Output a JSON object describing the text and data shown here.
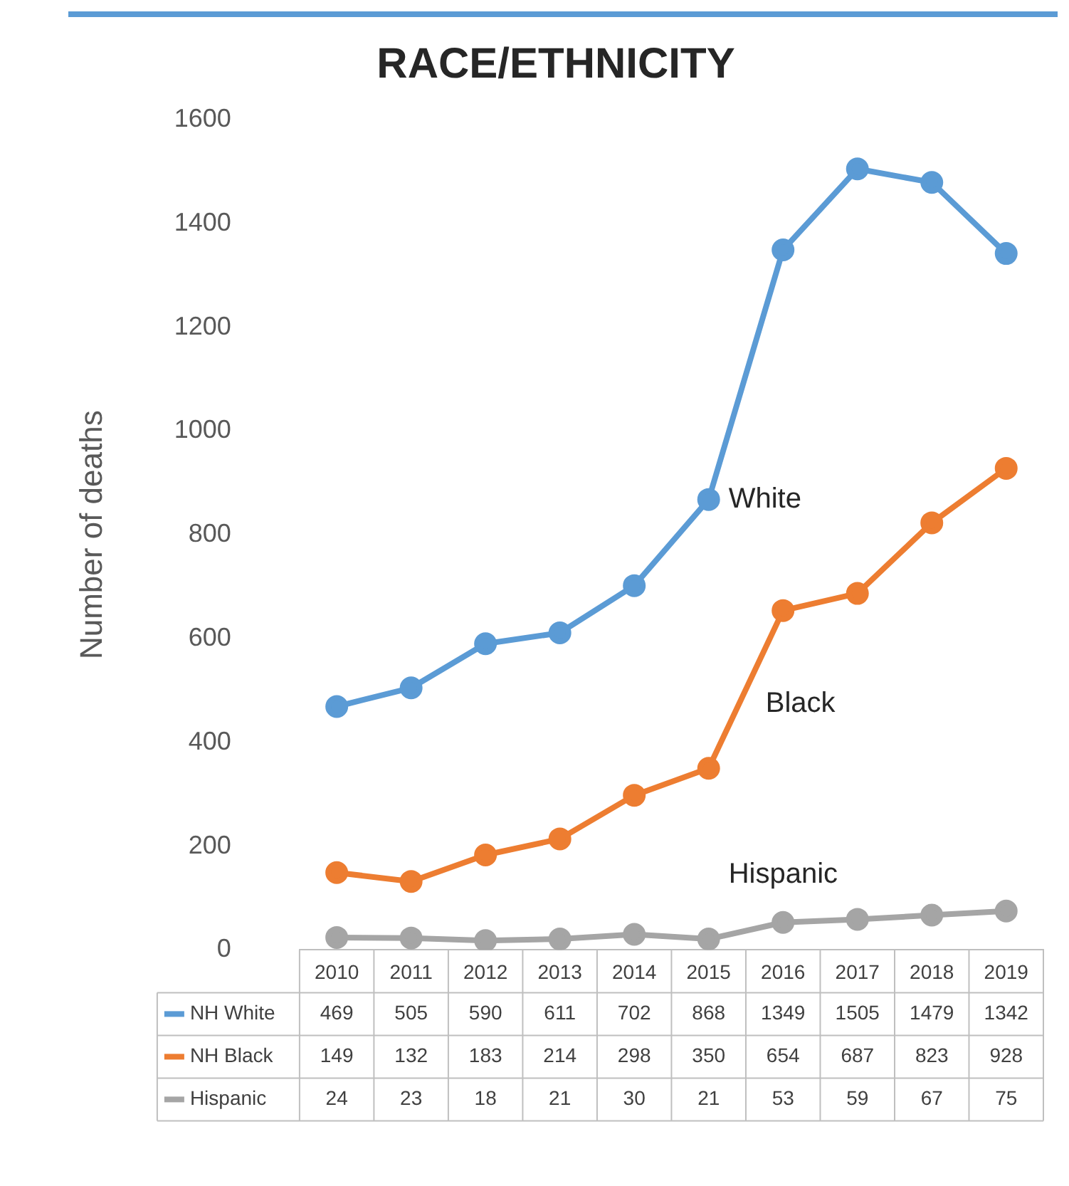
{
  "chart_data": {
    "type": "line",
    "title": "RACE/ETHNICITY",
    "ylabel": "Number of deaths",
    "categories": [
      "2010",
      "2011",
      "2012",
      "2013",
      "2014",
      "2015",
      "2016",
      "2017",
      "2018",
      "2019"
    ],
    "series": [
      {
        "name": "NH White",
        "color": "#5b9bd5",
        "values": [
          469,
          505,
          590,
          611,
          702,
          868,
          1349,
          1505,
          1479,
          1342
        ]
      },
      {
        "name": "NH Black",
        "color": "#ed7d31",
        "values": [
          149,
          132,
          183,
          214,
          298,
          350,
          654,
          687,
          823,
          928
        ]
      },
      {
        "name": "Hispanic",
        "color": "#a5a5a5",
        "values": [
          24,
          23,
          18,
          21,
          30,
          21,
          53,
          59,
          67,
          75
        ]
      }
    ],
    "annotations": [
      "White",
      "Black",
      "Hispanic"
    ],
    "ylim": [
      0,
      1600
    ],
    "yticks": [
      0,
      200,
      400,
      600,
      800,
      1000,
      1200,
      1400,
      1600
    ],
    "grid": false,
    "legend": "bottom left",
    "marker": "circle",
    "line_style": "solid",
    "data_labels": true
  }
}
